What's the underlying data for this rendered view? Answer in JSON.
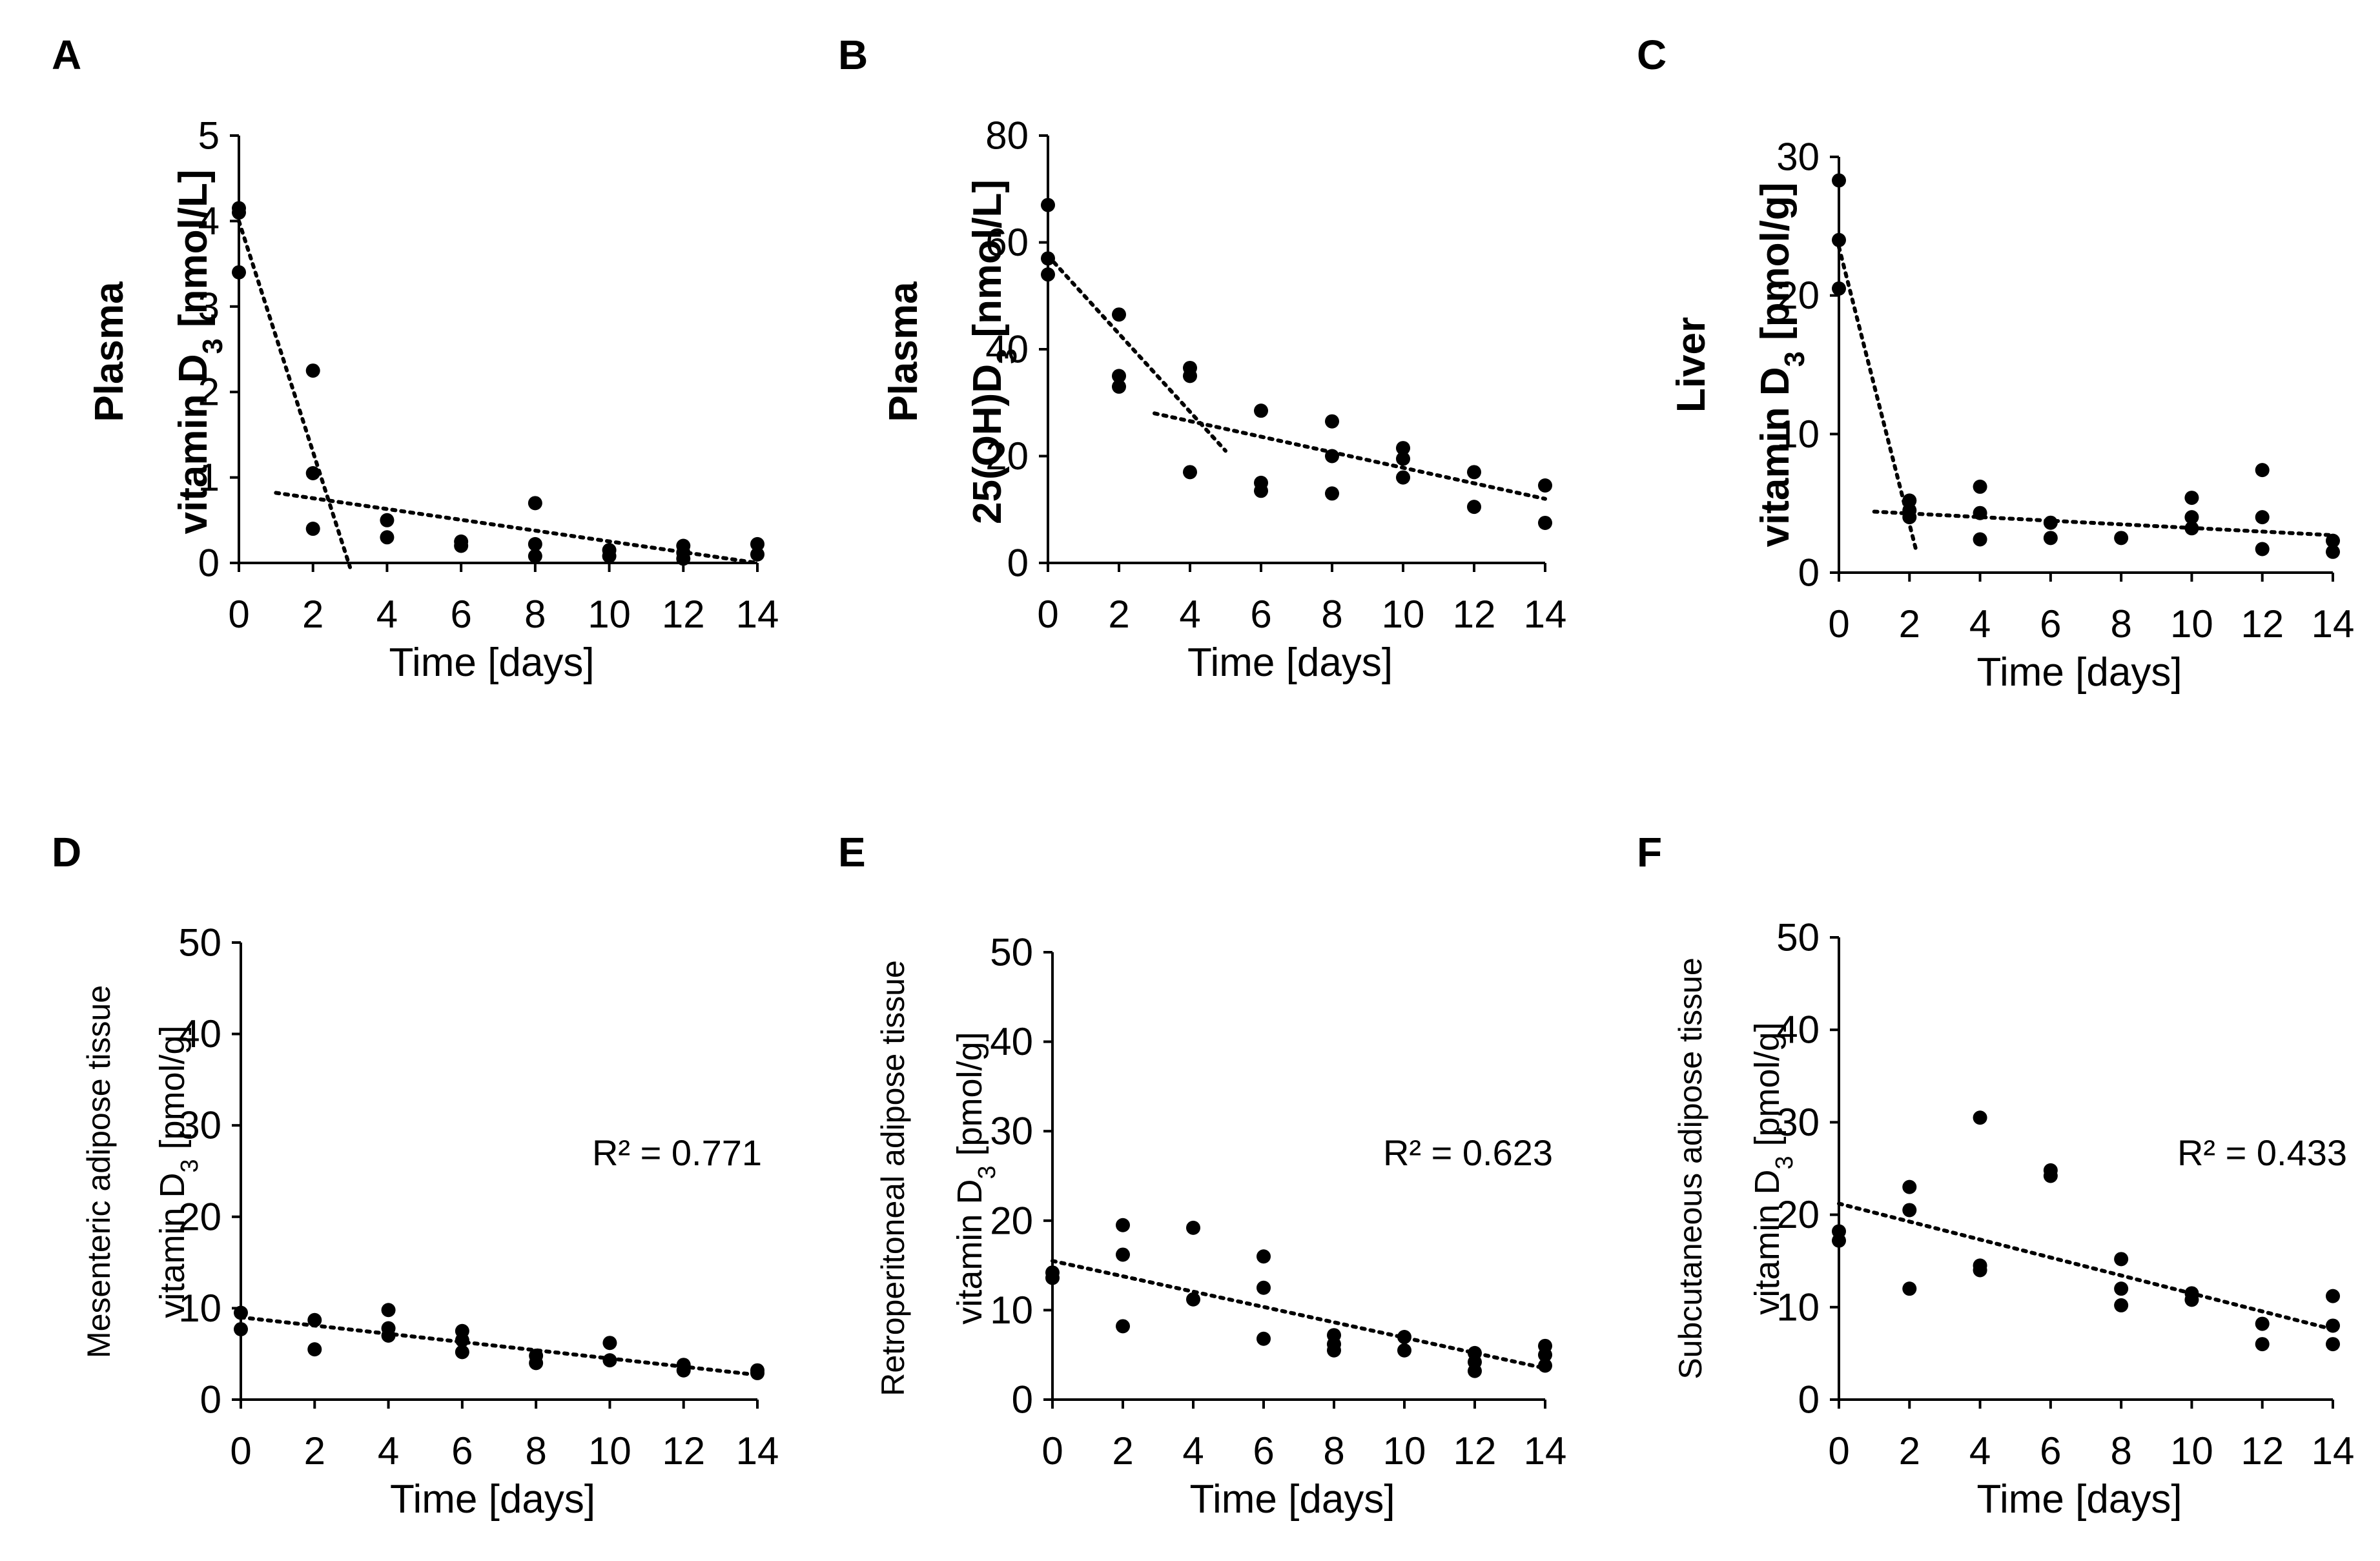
{
  "chart_data": [
    {
      "panel": "A",
      "type": "scatter",
      "ylabel_lines": [
        "Plasma",
        "vitamin D3 [nmol/L]"
      ],
      "xlabel": "Time [days]",
      "xlim": [
        0,
        14
      ],
      "ylim": [
        0,
        5
      ],
      "xticks": [
        0,
        2,
        4,
        6,
        8,
        10,
        12,
        14
      ],
      "yticks": [
        0,
        1,
        2,
        3,
        4,
        5
      ],
      "points": [
        [
          0,
          3.4
        ],
        [
          0,
          4.1
        ],
        [
          0,
          4.15
        ],
        [
          2,
          2.25
        ],
        [
          2,
          1.05
        ],
        [
          2,
          0.4
        ],
        [
          4,
          0.5
        ],
        [
          4,
          0.3
        ],
        [
          6,
          0.25
        ],
        [
          6,
          0.2
        ],
        [
          8,
          0.7
        ],
        [
          8,
          0.22
        ],
        [
          8,
          0.08
        ],
        [
          10,
          0.15
        ],
        [
          10,
          0.08
        ],
        [
          12,
          0.2
        ],
        [
          12,
          0.12
        ],
        [
          12,
          0.05
        ],
        [
          14,
          0.22
        ],
        [
          14,
          0.1
        ]
      ],
      "trendlines": [
        [
          [
            0,
            4.0
          ],
          [
            3,
            -0.05
          ]
        ],
        [
          [
            1,
            0.82
          ],
          [
            14,
            0
          ]
        ]
      ],
      "r2": ""
    },
    {
      "panel": "B",
      "type": "scatter",
      "ylabel_lines": [
        "Plasma",
        "25(OH)D3 [nmol/L]"
      ],
      "xlabel": "Time [days]",
      "xlim": [
        0,
        14
      ],
      "ylim": [
        0,
        80
      ],
      "xticks": [
        0,
        2,
        4,
        6,
        8,
        10,
        12,
        14
      ],
      "yticks": [
        0,
        20,
        40,
        60,
        80
      ],
      "points": [
        [
          0,
          67
        ],
        [
          0,
          57
        ],
        [
          0,
          54
        ],
        [
          2,
          46.5
        ],
        [
          2,
          35
        ],
        [
          2,
          33
        ],
        [
          4,
          36.5
        ],
        [
          4,
          35
        ],
        [
          4,
          17
        ],
        [
          6,
          28.5
        ],
        [
          6,
          15
        ],
        [
          6,
          13.5
        ],
        [
          8,
          26.5
        ],
        [
          8,
          20
        ],
        [
          8,
          13
        ],
        [
          10,
          21.5
        ],
        [
          10,
          19.5
        ],
        [
          10,
          16
        ],
        [
          12,
          17
        ],
        [
          12,
          10.5
        ],
        [
          14,
          14.5
        ],
        [
          14,
          7.5
        ]
      ],
      "trendlines": [
        [
          [
            0,
            57.5
          ],
          [
            5,
            21
          ]
        ],
        [
          [
            3,
            28
          ],
          [
            14,
            12
          ]
        ]
      ],
      "r2": ""
    },
    {
      "panel": "C",
      "type": "scatter",
      "ylabel_lines": [
        "Liver",
        "vitamin D3 [pmol/g]"
      ],
      "xlabel": "Time [days]",
      "xlim": [
        0,
        14
      ],
      "ylim": [
        0,
        30
      ],
      "xticks": [
        0,
        2,
        4,
        6,
        8,
        10,
        12,
        14
      ],
      "yticks": [
        0,
        10,
        20,
        30
      ],
      "points": [
        [
          0,
          28.3
        ],
        [
          0,
          24
        ],
        [
          0,
          20.5
        ],
        [
          2,
          5.2
        ],
        [
          2,
          4.5
        ],
        [
          2,
          4.0
        ],
        [
          4,
          6.2
        ],
        [
          4,
          4.3
        ],
        [
          4,
          2.4
        ],
        [
          6,
          3.6
        ],
        [
          6,
          2.5
        ],
        [
          8,
          2.5
        ],
        [
          10,
          5.4
        ],
        [
          10,
          4.0
        ],
        [
          10,
          3.2
        ],
        [
          12,
          7.4
        ],
        [
          12,
          4.0
        ],
        [
          12,
          1.7
        ],
        [
          14,
          2.3
        ],
        [
          14,
          1.5
        ]
      ],
      "trendlines": [
        [
          [
            0,
            23.5
          ],
          [
            2.2,
            1.5
          ]
        ],
        [
          [
            1,
            4.4
          ],
          [
            14,
            2.7
          ]
        ]
      ],
      "r2": ""
    },
    {
      "panel": "D",
      "type": "scatter",
      "ylabel_lines": [
        "Mesenteric adipose tissue",
        "vitamin D3 [pmol/g]"
      ],
      "xlabel": "Time [days]",
      "xlim": [
        0,
        14
      ],
      "ylim": [
        0,
        50
      ],
      "xticks": [
        0,
        2,
        4,
        6,
        8,
        10,
        12,
        14
      ],
      "yticks": [
        0,
        10,
        20,
        30,
        40,
        50
      ],
      "points": [
        [
          0,
          9.5
        ],
        [
          0,
          7.7
        ],
        [
          2,
          8.7
        ],
        [
          2,
          5.5
        ],
        [
          4,
          9.8
        ],
        [
          4,
          7.8
        ],
        [
          4,
          7.0
        ],
        [
          6,
          7.5
        ],
        [
          6,
          6.5
        ],
        [
          6,
          5.2
        ],
        [
          8,
          4.8
        ],
        [
          8,
          4.0
        ],
        [
          10,
          6.2
        ],
        [
          10,
          4.3
        ],
        [
          12,
          3.8
        ],
        [
          12,
          3.2
        ],
        [
          14,
          3.2
        ],
        [
          14,
          2.9
        ]
      ],
      "trendlines": [
        [
          [
            0,
            9.0
          ],
          [
            14,
            2.7
          ]
        ]
      ],
      "r2": "R² = 0.771"
    },
    {
      "panel": "E",
      "type": "scatter",
      "ylabel_lines": [
        "Retroperitoneal adipose tissue",
        "vitamin D3 [pmol/g]"
      ],
      "xlabel": "Time [days]",
      "xlim": [
        0,
        14
      ],
      "ylim": [
        0,
        50
      ],
      "xticks": [
        0,
        2,
        4,
        6,
        8,
        10,
        12,
        14
      ],
      "yticks": [
        0,
        10,
        20,
        30,
        40,
        50
      ],
      "points": [
        [
          0,
          14.2
        ],
        [
          0,
          13.6
        ],
        [
          2,
          19.5
        ],
        [
          2,
          16.2
        ],
        [
          2,
          8.2
        ],
        [
          4,
          19.2
        ],
        [
          4,
          11.2
        ],
        [
          6,
          16.0
        ],
        [
          6,
          12.5
        ],
        [
          6,
          6.8
        ],
        [
          8,
          7.2
        ],
        [
          8,
          6.2
        ],
        [
          8,
          5.5
        ],
        [
          10,
          7.0
        ],
        [
          10,
          5.5
        ],
        [
          12,
          5.2
        ],
        [
          12,
          4.2
        ],
        [
          12,
          3.2
        ],
        [
          14,
          6.0
        ],
        [
          14,
          5.0
        ],
        [
          14,
          3.8
        ]
      ],
      "trendlines": [
        [
          [
            0,
            15.5
          ],
          [
            14,
            3.5
          ]
        ]
      ],
      "r2": "R² = 0.623"
    },
    {
      "panel": "F",
      "type": "scatter",
      "ylabel_lines": [
        "Subcutaneous adipose tissue",
        "vitamin D3 [pmol/g]"
      ],
      "xlabel": "Time [days]",
      "xlim": [
        0,
        14
      ],
      "ylim": [
        0,
        50
      ],
      "xticks": [
        0,
        2,
        4,
        6,
        8,
        10,
        12,
        14
      ],
      "yticks": [
        0,
        10,
        20,
        30,
        40,
        50
      ],
      "points": [
        [
          0,
          18.2
        ],
        [
          0,
          17.2
        ],
        [
          2,
          23.0
        ],
        [
          2,
          20.5
        ],
        [
          2,
          12.0
        ],
        [
          4,
          30.5
        ],
        [
          4,
          14.5
        ],
        [
          4,
          14.0
        ],
        [
          6,
          24.8
        ],
        [
          6,
          24.2
        ],
        [
          8,
          15.2
        ],
        [
          8,
          12.0
        ],
        [
          8,
          10.2
        ],
        [
          10,
          11.5
        ],
        [
          10,
          10.8
        ],
        [
          12,
          8.2
        ],
        [
          12,
          6.0
        ],
        [
          14,
          11.2
        ],
        [
          14,
          8.0
        ],
        [
          14,
          6.0
        ]
      ],
      "trendlines": [
        [
          [
            0,
            21.2
          ],
          [
            14,
            7.6
          ]
        ]
      ],
      "r2": "R² = 0.433"
    }
  ]
}
